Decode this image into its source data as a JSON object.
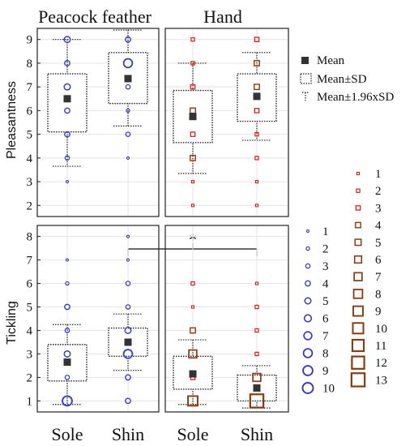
{
  "chart_data": [
    {
      "type": "box",
      "title": "Peacock feather",
      "ylabel": "Pleasantness",
      "ylim": [
        1.6,
        9.4
      ],
      "yticks": [
        2,
        3,
        4,
        5,
        6,
        7,
        8,
        9
      ],
      "categories": [
        "Sole",
        "Shin"
      ],
      "series": [
        {
          "category": "Sole",
          "mean": 6.5,
          "sd_low": 5.1,
          "sd_high": 7.55,
          "ci_low": 3.65,
          "ci_high": 9.0,
          "points": [
            {
              "y": 9,
              "count": 5
            },
            {
              "y": 8,
              "count": 4
            },
            {
              "y": 7,
              "count": 5
            },
            {
              "y": 6,
              "count": 4
            },
            {
              "y": 5,
              "count": 4
            },
            {
              "y": 4,
              "count": 3
            },
            {
              "y": 3,
              "count": 1
            }
          ]
        },
        {
          "category": "Shin",
          "mean": 7.35,
          "sd_low": 6.3,
          "sd_high": 8.45,
          "ci_low": 5.35,
          "ci_high": 9.4,
          "points": [
            {
              "y": 9,
              "count": 4
            },
            {
              "y": 8,
              "count": 8
            },
            {
              "y": 7,
              "count": 3
            },
            {
              "y": 6,
              "count": 2
            },
            {
              "y": 5,
              "count": 3
            },
            {
              "y": 4,
              "count": 1
            }
          ]
        }
      ]
    },
    {
      "type": "box",
      "title": "Hand",
      "ylabel": "Pleasantness",
      "ylim": [
        1.6,
        9.4
      ],
      "yticks": [
        2,
        3,
        4,
        5,
        6,
        7,
        8,
        9
      ],
      "categories": [
        "Sole",
        "Shin"
      ],
      "series": [
        {
          "category": "Sole",
          "mean": 5.75,
          "sd_low": 4.65,
          "sd_high": 6.85,
          "ci_low": 3.35,
          "ci_high": 8.0,
          "points": [
            {
              "y": 9,
              "count": 2
            },
            {
              "y": 8,
              "count": 2
            },
            {
              "y": 7,
              "count": 3
            },
            {
              "y": 6,
              "count": 4
            },
            {
              "y": 5,
              "count": 3
            },
            {
              "y": 4,
              "count": 4
            },
            {
              "y": 3,
              "count": 1
            },
            {
              "y": 2,
              "count": 1
            }
          ]
        },
        {
          "category": "Shin",
          "mean": 6.6,
          "sd_low": 5.55,
          "sd_high": 7.55,
          "ci_low": 4.75,
          "ci_high": 8.45,
          "points": [
            {
              "y": 9,
              "count": 3
            },
            {
              "y": 8,
              "count": 4
            },
            {
              "y": 7,
              "count": 4
            },
            {
              "y": 6,
              "count": 3
            },
            {
              "y": 5,
              "count": 2
            },
            {
              "y": 4,
              "count": 2
            },
            {
              "y": 3,
              "count": 1
            },
            {
              "y": 2,
              "count": 1
            }
          ]
        }
      ]
    },
    {
      "type": "box",
      "title": "",
      "ylabel": "Tickling",
      "ylim": [
        0.6,
        8.4
      ],
      "yticks": [
        1,
        2,
        3,
        4,
        5,
        6,
        7,
        8
      ],
      "categories": [
        "Sole",
        "Shin"
      ],
      "series": [
        {
          "category": "Sole",
          "mean": 2.65,
          "sd_low": 1.85,
          "sd_high": 3.4,
          "ci_low": 0.85,
          "ci_high": 4.25,
          "points": [
            {
              "y": 7,
              "count": 1
            },
            {
              "y": 6,
              "count": 2
            },
            {
              "y": 5,
              "count": 4
            },
            {
              "y": 4,
              "count": 3
            },
            {
              "y": 3,
              "count": 5
            },
            {
              "y": 2,
              "count": 3
            },
            {
              "y": 1,
              "count": 9
            }
          ]
        },
        {
          "category": "Shin",
          "mean": 3.5,
          "sd_low": 2.9,
          "sd_high": 4.1,
          "ci_low": 2.3,
          "ci_high": 4.7,
          "points": [
            {
              "y": 8,
              "count": 1
            },
            {
              "y": 7,
              "count": 1
            },
            {
              "y": 6,
              "count": 3
            },
            {
              "y": 5,
              "count": 3
            },
            {
              "y": 4,
              "count": 5
            },
            {
              "y": 3,
              "count": 8
            },
            {
              "y": 2,
              "count": 4
            },
            {
              "y": 1,
              "count": 4
            }
          ]
        }
      ]
    },
    {
      "type": "box",
      "title": "",
      "ylabel": "Tickling",
      "ylim": [
        0.6,
        8.4
      ],
      "yticks": [
        1,
        2,
        3,
        4,
        5,
        6,
        7,
        8
      ],
      "categories": [
        "Sole",
        "Shin"
      ],
      "series": [
        {
          "category": "Sole",
          "mean": 2.15,
          "sd_low": 1.5,
          "sd_high": 2.9,
          "ci_low": 0.85,
          "ci_high": 3.6,
          "points": [
            {
              "y": 6,
              "count": 2
            },
            {
              "y": 5,
              "count": 1
            },
            {
              "y": 4,
              "count": 4
            },
            {
              "y": 3,
              "count": 7
            },
            {
              "y": 2,
              "count": 3
            },
            {
              "y": 1,
              "count": 9
            }
          ]
        },
        {
          "category": "Shin",
          "mean": 1.55,
          "sd_low": 1.0,
          "sd_high": 2.1,
          "ci_low": 0.7,
          "ci_high": 2.5,
          "points": [
            {
              "y": 6,
              "count": 1
            },
            {
              "y": 5,
              "count": 2
            },
            {
              "y": 4,
              "count": 2
            },
            {
              "y": 3,
              "count": 2
            },
            {
              "y": 2,
              "count": 7
            },
            {
              "y": 1,
              "count": 13
            }
          ]
        }
      ]
    }
  ],
  "legend": {
    "mean": "Mean",
    "sd": "Mean±SD",
    "ci": "Mean±1.96xSD"
  },
  "size_legend_blue": {
    "color": "#3a3acd",
    "labels": [
      "1",
      "2",
      "3",
      "4",
      "5",
      "6",
      "7",
      "8",
      "9",
      "10"
    ]
  },
  "size_legend_red": {
    "color": "#d62020",
    "dark_color": "#8b3a10",
    "labels": [
      "1",
      "2",
      "3",
      "4",
      "5",
      "6",
      "7",
      "8",
      "9",
      "10",
      "11",
      "12",
      "13"
    ]
  },
  "annotation": {
    "text": "*"
  },
  "colors": {
    "feather": "#3a3acd",
    "hand": "#d62020",
    "mean": "#333333"
  }
}
